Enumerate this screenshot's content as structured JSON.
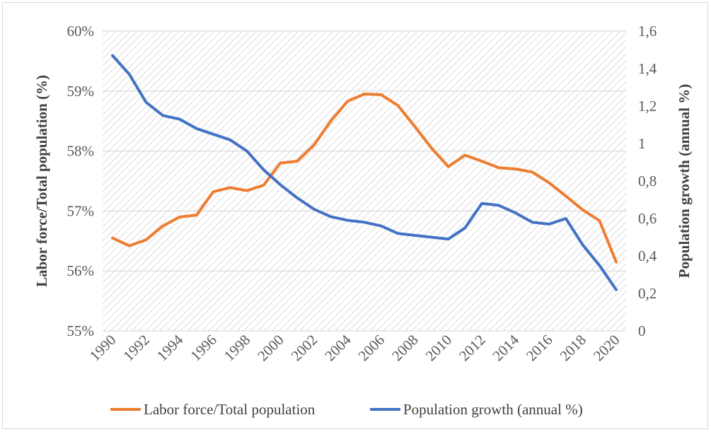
{
  "chart_data": {
    "type": "line",
    "title": "",
    "xlabel": "",
    "ylabel": "Labor force/Total population (%)",
    "y2label": "Population growth (annual %)",
    "x": [
      1990,
      1991,
      1992,
      1993,
      1994,
      1995,
      1996,
      1997,
      1998,
      1999,
      2000,
      2001,
      2002,
      2003,
      2004,
      2005,
      2006,
      2007,
      2008,
      2009,
      2010,
      2011,
      2012,
      2013,
      2014,
      2015,
      2016,
      2017,
      2018,
      2019,
      2020
    ],
    "x_tick_labels": [
      "1990",
      "1992",
      "1994",
      "1996",
      "1998",
      "2000",
      "2002",
      "2004",
      "2006",
      "2008",
      "2010",
      "2012",
      "2014",
      "2016",
      "2018",
      "2020"
    ],
    "ylim": [
      55,
      60
    ],
    "y_tick_labels": [
      "55%",
      "56%",
      "57%",
      "58%",
      "59%",
      "60%"
    ],
    "y2lim": [
      0,
      1.6
    ],
    "y2_tick_labels": [
      "0",
      "0,2",
      "0,4",
      "0,6",
      "0,8",
      "1",
      "1,2",
      "1,4",
      "1,6"
    ],
    "grid": "horizontal",
    "background": "diagonal-hatch",
    "legend_position": "bottom",
    "series": [
      {
        "name": "Labor force/Total population",
        "axis": "left",
        "color": "#ED7D31",
        "values": [
          56.55,
          56.42,
          56.52,
          56.75,
          56.9,
          56.93,
          57.32,
          57.39,
          57.34,
          57.43,
          57.8,
          57.83,
          58.1,
          58.5,
          58.83,
          58.95,
          58.94,
          58.76,
          58.41,
          58.05,
          57.74,
          57.93,
          57.83,
          57.72,
          57.7,
          57.65,
          57.47,
          57.25,
          57.02,
          56.84,
          56.15
        ]
      },
      {
        "name": "Population growth (annual %)",
        "axis": "right",
        "color": "#4472C4",
        "values": [
          1.47,
          1.37,
          1.22,
          1.15,
          1.13,
          1.08,
          1.05,
          1.02,
          0.96,
          0.86,
          0.78,
          0.71,
          0.65,
          0.61,
          0.59,
          0.58,
          0.56,
          0.52,
          0.51,
          0.5,
          0.49,
          0.55,
          0.68,
          0.67,
          0.63,
          0.58,
          0.57,
          0.6,
          0.46,
          0.35,
          0.22
        ]
      }
    ]
  }
}
